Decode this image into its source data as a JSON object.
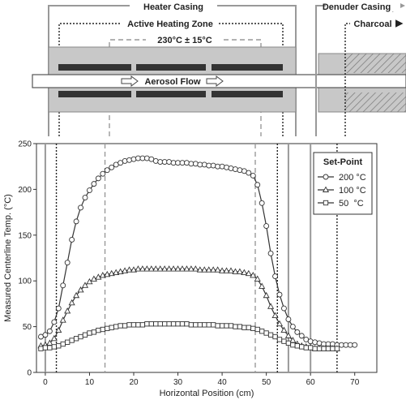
{
  "schematic": {
    "heater_casing_label": "Heater Casing",
    "denuder_casing_label": "Denuder Casing",
    "charcoal_label": "Charcoal",
    "active_zone_label": "Active Heating Zone",
    "temp_spec_label": "230°C ± 15°C",
    "aerosol_flow_label": "Aerosol Flow"
  },
  "chart_data": {
    "type": "line",
    "xlabel": "Horizontal Position (cm)",
    "ylabel": "Measured Centerline Temp. (°C)",
    "xlim": [
      -2,
      75
    ],
    "ylim": [
      0,
      250
    ],
    "xticks": [
      0,
      10,
      20,
      30,
      40,
      50,
      60,
      70
    ],
    "yticks": [
      0,
      50,
      100,
      150,
      200,
      250
    ],
    "legend": {
      "title": "Set-Point",
      "position": "top-right",
      "entries": [
        "200 °C",
        "100 °C",
        "50  °C"
      ]
    },
    "series": [
      {
        "name": "200 °C",
        "marker": "circle",
        "x": [
          -1,
          0,
          1,
          2,
          3,
          4,
          5,
          6,
          7,
          8,
          9,
          10,
          11,
          12,
          13,
          14,
          15,
          16,
          17,
          18,
          19,
          20,
          21,
          22,
          23,
          24,
          25,
          26,
          27,
          28,
          29,
          30,
          31,
          32,
          33,
          34,
          35,
          36,
          37,
          38,
          39,
          40,
          41,
          42,
          43,
          44,
          45,
          46,
          47,
          48,
          49,
          50,
          51,
          52,
          53,
          54,
          55,
          56,
          57,
          58,
          59,
          60,
          61,
          62,
          63,
          64,
          65,
          66,
          67,
          68,
          69,
          70
        ],
        "values": [
          39,
          41,
          45,
          55,
          70,
          95,
          120,
          145,
          165,
          180,
          191,
          199,
          206,
          212,
          217,
          221,
          224,
          227,
          229,
          231,
          232,
          233,
          234,
          234,
          234,
          233,
          231,
          230,
          230,
          230,
          229,
          229,
          229,
          229,
          228,
          228,
          227,
          227,
          226,
          226,
          225,
          225,
          224,
          223,
          222,
          221,
          220,
          218,
          215,
          205,
          185,
          160,
          130,
          105,
          85,
          70,
          58,
          50,
          44,
          40,
          36,
          34,
          33,
          32,
          31,
          31,
          31,
          30,
          30,
          30,
          30,
          30
        ]
      },
      {
        "name": "100 °C",
        "marker": "triangle",
        "x": [
          -1,
          0,
          1,
          2,
          3,
          4,
          5,
          6,
          7,
          8,
          9,
          10,
          11,
          12,
          13,
          14,
          15,
          16,
          17,
          18,
          19,
          20,
          21,
          22,
          23,
          24,
          25,
          26,
          27,
          28,
          29,
          30,
          31,
          32,
          33,
          34,
          35,
          36,
          37,
          38,
          39,
          40,
          41,
          42,
          43,
          44,
          45,
          46,
          47,
          48,
          49,
          50,
          51,
          52,
          53,
          54,
          55,
          56,
          57,
          58,
          59,
          60,
          61,
          62,
          63,
          64,
          65,
          66
        ],
        "values": [
          29,
          30,
          32,
          37,
          46,
          57,
          67,
          76,
          84,
          90,
          95,
          99,
          102,
          104,
          106,
          107,
          108,
          109,
          110,
          111,
          112,
          112,
          113,
          113,
          113,
          113,
          113,
          113,
          113,
          113,
          113,
          113,
          113,
          113,
          113,
          113,
          112,
          112,
          112,
          112,
          112,
          111,
          111,
          111,
          110,
          110,
          109,
          108,
          106,
          102,
          94,
          84,
          72,
          62,
          53,
          46,
          40,
          35,
          31,
          29,
          28,
          27,
          26,
          26,
          26,
          26,
          26,
          26
        ]
      },
      {
        "name": "50  °C",
        "marker": "square",
        "x": [
          -1,
          0,
          1,
          2,
          3,
          4,
          5,
          6,
          7,
          8,
          9,
          10,
          11,
          12,
          13,
          14,
          15,
          16,
          17,
          18,
          19,
          20,
          21,
          22,
          23,
          24,
          25,
          26,
          27,
          28,
          29,
          30,
          31,
          32,
          33,
          34,
          35,
          36,
          37,
          38,
          39,
          40,
          41,
          42,
          43,
          44,
          45,
          46,
          47,
          48,
          49,
          50,
          51,
          52,
          53,
          54,
          55,
          56,
          57,
          58,
          59,
          60,
          61,
          62,
          63,
          64,
          65,
          66
        ],
        "values": [
          26,
          27,
          27,
          28,
          29,
          31,
          33,
          35,
          37,
          39,
          41,
          43,
          44,
          46,
          47,
          48,
          49,
          50,
          51,
          51,
          52,
          52,
          52,
          52,
          53,
          53,
          53,
          53,
          53,
          53,
          53,
          53,
          53,
          53,
          52,
          52,
          52,
          52,
          52,
          52,
          51,
          51,
          51,
          51,
          50,
          50,
          49,
          49,
          48,
          47,
          45,
          43,
          41,
          39,
          36,
          34,
          32,
          30,
          29,
          28,
          27,
          27,
          26,
          26,
          26,
          26,
          26,
          26
        ]
      }
    ],
    "reference_lines": [
      {
        "x": 0,
        "style": "solid",
        "color": "#999999"
      },
      {
        "x": 2.5,
        "style": "dotted",
        "color": "#222222"
      },
      {
        "x": 13.5,
        "style": "dashed",
        "color": "#999999"
      },
      {
        "x": 47.5,
        "style": "dashed",
        "color": "#999999"
      },
      {
        "x": 52.5,
        "style": "dotted",
        "color": "#222222"
      },
      {
        "x": 55,
        "style": "solid",
        "color": "#999999"
      },
      {
        "x": 60,
        "style": "solid",
        "color": "#999999"
      },
      {
        "x": 66,
        "style": "dotted",
        "color": "#222222"
      }
    ]
  }
}
